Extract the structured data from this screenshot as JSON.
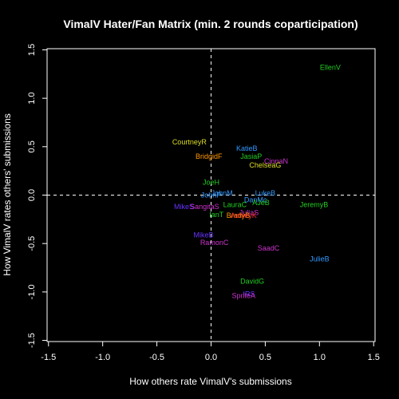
{
  "chart_data": {
    "type": "scatter",
    "title": "VimalV Hater/Fan Matrix (min. 2 rounds coparticipation)",
    "xlabel": "How others rate VimalV's submissions",
    "ylabel": "How VimalV rates others' submissions",
    "xlim": [
      -1.5,
      1.5
    ],
    "ylim": [
      -1.5,
      1.5
    ],
    "xticks": [
      "-1.5",
      "-1.0",
      "-0.5",
      "0.0",
      "0.5",
      "1.0",
      "1.5"
    ],
    "yticks": [
      "-1.5",
      "-1.0",
      "-0.5",
      "0.0",
      "0.5",
      "1.0",
      "1.5"
    ],
    "reference_lines": {
      "x": 0,
      "y": 0
    },
    "points": [
      {
        "label": "EllenV",
        "x": 1.1,
        "y": 1.32,
        "color": "#22cc22"
      },
      {
        "label": "CourtneyR",
        "x": -0.2,
        "y": 0.55,
        "color": "#dddd22"
      },
      {
        "label": "KatieB",
        "x": 0.33,
        "y": 0.48,
        "color": "#3399ff"
      },
      {
        "label": "JasiaP",
        "x": 0.37,
        "y": 0.4,
        "color": "#22cc22"
      },
      {
        "label": "BridgidF",
        "x": -0.02,
        "y": 0.4,
        "color": "#ff9900"
      },
      {
        "label": "CinnaN",
        "x": 0.6,
        "y": 0.35,
        "color": "#cc33cc"
      },
      {
        "label": "ChelseaG",
        "x": 0.5,
        "y": 0.31,
        "color": "#dddd22"
      },
      {
        "label": "JoeH",
        "x": 0.0,
        "y": 0.13,
        "color": "#22cc22"
      },
      {
        "label": "LukeB",
        "x": 0.5,
        "y": 0.02,
        "color": "#3399ff"
      },
      {
        "label": "JohnM",
        "x": 0.1,
        "y": 0.02,
        "color": "#3399ff"
      },
      {
        "label": "JohnP",
        "x": 0.0,
        "y": 0.0,
        "color": "#3399ff"
      },
      {
        "label": "DanMc",
        "x": 0.41,
        "y": -0.05,
        "color": "#3399ff"
      },
      {
        "label": "LauraC",
        "x": 0.22,
        "y": -0.1,
        "color": "#22cc22"
      },
      {
        "label": "JeremyB",
        "x": 0.95,
        "y": -0.1,
        "color": "#22cc22"
      },
      {
        "label": "AJeB",
        "x": 0.46,
        "y": -0.08,
        "color": "#22cc22"
      },
      {
        "label": "MikeS",
        "x": -0.25,
        "y": -0.12,
        "color": "#6633ff"
      },
      {
        "label": "SangitaS",
        "x": -0.06,
        "y": -0.12,
        "color": "#cc33cc"
      },
      {
        "label": "JuliaS",
        "x": 0.35,
        "y": -0.18,
        "color": "#cc33cc"
      },
      {
        "label": "IanT",
        "x": 0.05,
        "y": -0.2,
        "color": "#22cc22"
      },
      {
        "label": "BradyB",
        "x": 0.25,
        "y": -0.21,
        "color": "#ff9900"
      },
      {
        "label": "AshleyK",
        "x": 0.3,
        "y": -0.21,
        "color": "#ff3333"
      },
      {
        "label": "MikeB",
        "x": -0.07,
        "y": -0.41,
        "color": "#6633ff"
      },
      {
        "label": "RamonC",
        "x": 0.03,
        "y": -0.49,
        "color": "#cc33cc"
      },
      {
        "label": "SaadC",
        "x": 0.53,
        "y": -0.55,
        "color": "#cc33cc"
      },
      {
        "label": "JulieB",
        "x": 1.0,
        "y": -0.66,
        "color": "#3399ff"
      },
      {
        "label": "DavidG",
        "x": 0.38,
        "y": -0.89,
        "color": "#22cc22"
      },
      {
        "label": "IRS",
        "x": 0.35,
        "y": -1.02,
        "color": "#6633ff"
      },
      {
        "label": "SpriteA",
        "x": 0.3,
        "y": -1.04,
        "color": "#cc33cc"
      }
    ]
  }
}
